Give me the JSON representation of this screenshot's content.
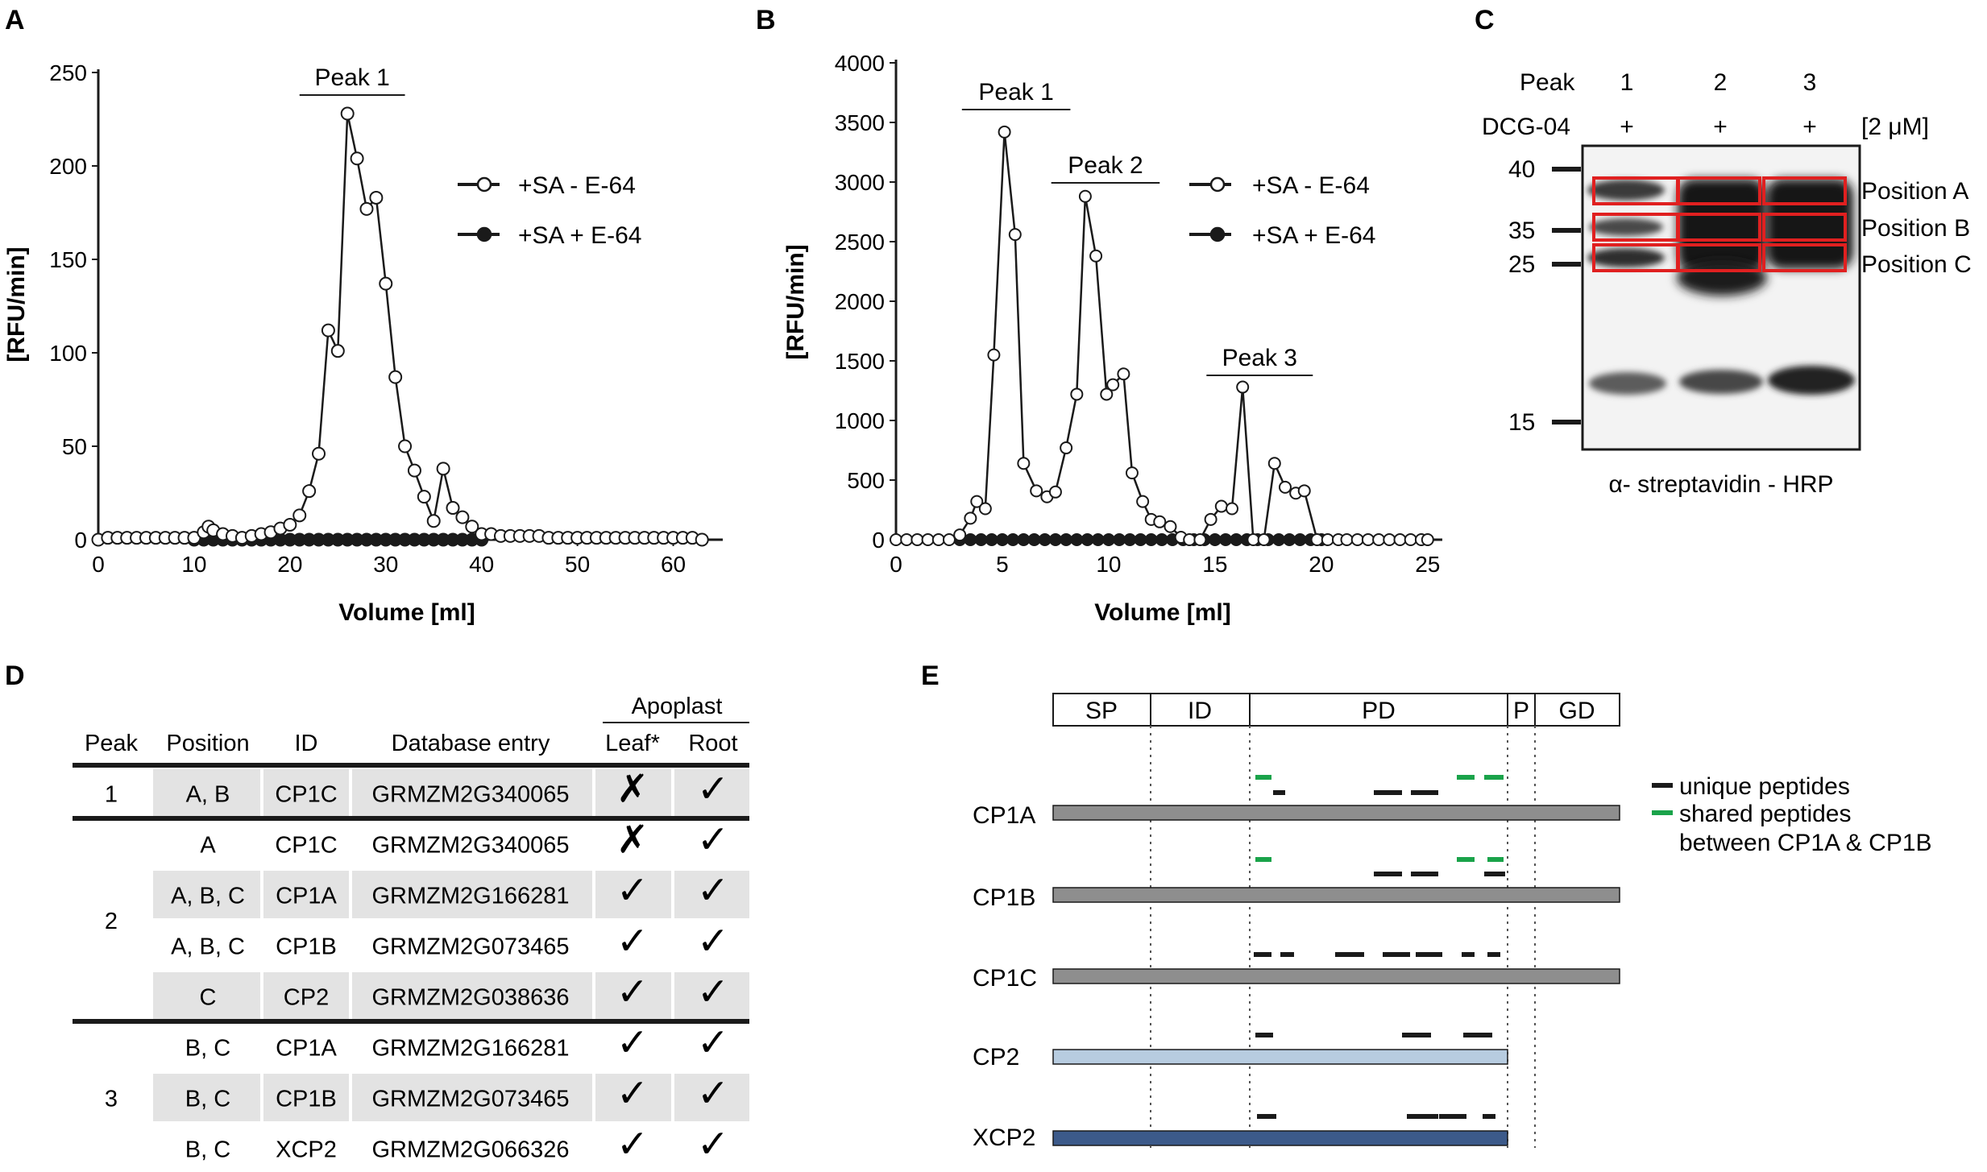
{
  "colors": {
    "line": "#1a1a1a",
    "red_box": "#e02020",
    "shared": "#1aa34a",
    "grey_bar": "#8e8e8e",
    "light_blue_bar": "#b7cce0",
    "dark_blue_bar": "#3c5a8a",
    "table_shade": "#e3e3e3"
  },
  "chart_data": [
    {
      "panel": "A",
      "type": "line",
      "xlabel": "Volume [ml]",
      "ylabel": "[RFU/min]",
      "xlim": [
        0,
        65
      ],
      "ylim": [
        0,
        250
      ],
      "xticks": [
        0,
        10,
        20,
        30,
        40,
        50,
        60
      ],
      "yticks": [
        0,
        50,
        100,
        150,
        200,
        250
      ],
      "peaks": [
        {
          "label": "Peak 1",
          "x_from": 21,
          "x_to": 32
        }
      ],
      "series": [
        {
          "name": "+SA - E-64",
          "marker": "open-circle",
          "x": [
            0,
            1,
            2,
            3,
            4,
            5,
            6,
            7,
            8,
            9,
            10,
            11,
            11.5,
            12,
            13,
            14,
            15,
            16,
            17,
            18,
            19,
            20,
            21,
            22,
            23,
            24,
            25,
            26,
            27,
            28,
            29,
            30,
            31,
            32,
            33,
            34,
            35,
            36,
            37,
            38,
            39,
            40,
            41,
            42,
            43,
            44,
            45,
            46,
            47,
            48,
            49,
            50,
            51,
            52,
            53,
            54,
            55,
            56,
            57,
            58,
            59,
            60,
            61,
            62,
            63
          ],
          "y": [
            0,
            1,
            1,
            1,
            1,
            1,
            1,
            1,
            1,
            1,
            1,
            4,
            7,
            5,
            3,
            2,
            1,
            2,
            3,
            4,
            6,
            8,
            13,
            26,
            46,
            112,
            101,
            228,
            204,
            177,
            183,
            137,
            87,
            50,
            37,
            23,
            10,
            38,
            17,
            12,
            7,
            3,
            3,
            2,
            2,
            2,
            2,
            2,
            1,
            1,
            1,
            1,
            1,
            1,
            1,
            1,
            1,
            1,
            1,
            1,
            1,
            1,
            1,
            1,
            0
          ]
        },
        {
          "name": "+SA + E-64",
          "marker": "filled-circle",
          "x": [
            10,
            11,
            12,
            13,
            14,
            15,
            16,
            17,
            18,
            19,
            20,
            21,
            22,
            23,
            24,
            25,
            26,
            27,
            28,
            29,
            30,
            31,
            32,
            33,
            34,
            35,
            36,
            37,
            38,
            39,
            40
          ],
          "y": [
            0,
            0,
            0,
            0,
            0,
            0,
            0,
            0,
            0,
            0,
            0,
            0,
            0,
            0,
            0,
            0,
            0,
            0,
            0,
            0,
            0,
            0,
            0,
            0,
            0,
            0,
            0,
            0,
            0,
            0,
            0
          ]
        }
      ]
    },
    {
      "panel": "B",
      "type": "line",
      "xlabel": "Volume [ml]",
      "ylabel": "[RFU/min]",
      "xlim": [
        0,
        25.5
      ],
      "ylim": [
        0,
        4000
      ],
      "xticks": [
        0,
        5,
        10,
        15,
        20,
        25
      ],
      "yticks": [
        0,
        500,
        1000,
        1500,
        2000,
        2500,
        3000,
        3500,
        4000
      ],
      "peaks": [
        {
          "label": "Peak 1",
          "x_from": 3.1,
          "x_to": 8.2
        },
        {
          "label": "Peak 2",
          "x_from": 7.3,
          "x_to": 12.4
        },
        {
          "label": "Peak 3",
          "x_from": 14.6,
          "x_to": 19.6
        }
      ],
      "series": [
        {
          "name": "+SA - E-64",
          "marker": "open-circle",
          "x": [
            0,
            0.5,
            1,
            1.5,
            2,
            2.5,
            3,
            3.5,
            3.8,
            4.2,
            4.6,
            5.1,
            5.6,
            6.0,
            6.6,
            7.1,
            7.5,
            8.0,
            8.5,
            8.9,
            9.4,
            9.9,
            10.2,
            10.7,
            11.1,
            11.6,
            12.0,
            12.4,
            12.9,
            13.4,
            13.8,
            14.3,
            14.8,
            15.3,
            15.8,
            16.3,
            16.8,
            17.3,
            17.8,
            18.3,
            18.8,
            19.2,
            19.8,
            20.3,
            20.8,
            21.2,
            21.7,
            22.2,
            22.7,
            23.2,
            23.7,
            24.2,
            24.7,
            25.0
          ],
          "y": [
            0,
            0,
            0,
            0,
            0,
            0,
            40,
            180,
            320,
            260,
            1550,
            3420,
            2560,
            640,
            410,
            360,
            400,
            770,
            1220,
            2880,
            2380,
            1220,
            1300,
            1390,
            560,
            320,
            170,
            150,
            110,
            20,
            0,
            0,
            170,
            280,
            260,
            1280,
            0,
            0,
            640,
            440,
            390,
            410,
            0,
            0,
            0,
            0,
            0,
            0,
            0,
            0,
            0,
            0,
            0,
            0
          ]
        },
        {
          "name": "+SA + E-64",
          "marker": "filled-circle",
          "x": [
            3,
            3.5,
            4,
            4.5,
            5,
            5.5,
            6,
            6.5,
            7,
            7.5,
            8,
            8.5,
            9,
            9.5,
            10,
            10.5,
            11,
            11.5,
            12,
            12.5,
            13,
            13.5,
            14,
            14.5,
            15,
            15.5,
            16,
            16.5,
            17,
            17.5,
            18,
            18.5,
            19,
            19.5,
            20
          ],
          "y": [
            0,
            0,
            0,
            0,
            0,
            0,
            0,
            0,
            0,
            0,
            0,
            0,
            0,
            0,
            0,
            0,
            0,
            0,
            0,
            0,
            0,
            0,
            0,
            0,
            0,
            0,
            0,
            0,
            0,
            0,
            0,
            0,
            0,
            0,
            0
          ]
        }
      ]
    }
  ],
  "gel": {
    "panel": "C",
    "peak_label": "Peak",
    "probe_label": "DCG-04",
    "lanes": [
      "1",
      "2",
      "3"
    ],
    "lane_signs": [
      "+",
      "+",
      "+"
    ],
    "concentration": "[2 μM]",
    "markers": [
      "40",
      "35",
      "25",
      "15"
    ],
    "positions": [
      "Position A",
      "Position B",
      "Position C"
    ],
    "caption": "α- streptavidin - HRP"
  },
  "table": {
    "panel": "D",
    "group_header": "Apoplast",
    "headers": [
      "Peak",
      "Position",
      "ID",
      "Database entry",
      "Leaf*",
      "Root"
    ],
    "rows": [
      {
        "peak": "1",
        "position": "A, B",
        "id": "CP1C",
        "entry": "GRMZM2G340065",
        "leaf": "✗",
        "root": "✓",
        "shaded": true
      },
      {
        "peak": "",
        "position": "A",
        "id": "CP1C",
        "entry": "GRMZM2G340065",
        "leaf": "✗",
        "root": "✓",
        "shaded": false
      },
      {
        "peak": "2",
        "position": "A, B, C",
        "id": "CP1A",
        "entry": "GRMZM2G166281",
        "leaf": "✓",
        "root": "✓",
        "shaded": true
      },
      {
        "peak": "",
        "position": "A, B, C",
        "id": "CP1B",
        "entry": "GRMZM2G073465",
        "leaf": "✓",
        "root": "✓",
        "shaded": false
      },
      {
        "peak": "",
        "position": "C",
        "id": "CP2",
        "entry": "GRMZM2G038636",
        "leaf": "✓",
        "root": "✓",
        "shaded": true
      },
      {
        "peak": "",
        "position": "B, C",
        "id": "CP1A",
        "entry": "GRMZM2G166281",
        "leaf": "✓",
        "root": "✓",
        "shaded": false
      },
      {
        "peak": "3",
        "position": "B, C",
        "id": "CP1B",
        "entry": "GRMZM2G073465",
        "leaf": "✓",
        "root": "✓",
        "shaded": true
      },
      {
        "peak": "",
        "position": "B, C",
        "id": "XCP2",
        "entry": "GRMZM2G066326",
        "leaf": "✓",
        "root": "✓",
        "shaded": false
      }
    ]
  },
  "domains": {
    "panel": "E",
    "labels": [
      "SP",
      "ID",
      "PD",
      "P",
      "GD"
    ],
    "legend": {
      "unique": "unique peptides",
      "shared_line1": "shared peptides",
      "shared_line2": "between CP1A & CP1B"
    },
    "proteins": [
      "CP1A",
      "CP1B",
      "CP1C",
      "CP2",
      "XCP2"
    ]
  }
}
